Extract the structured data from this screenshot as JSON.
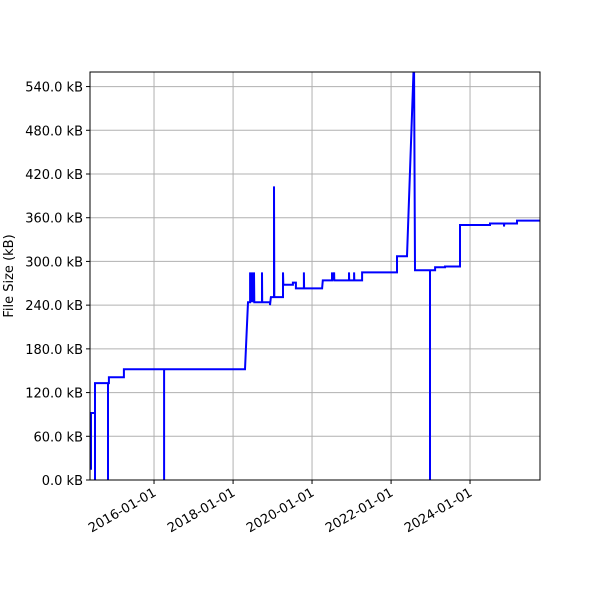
{
  "chart_data": {
    "type": "line",
    "title": "",
    "xlabel": "",
    "ylabel": "File Size (kB)",
    "xlim": [
      "2014-05-19",
      "2025-10-09"
    ],
    "ylim": [
      0,
      560
    ],
    "grid": true,
    "line_color": "#0000ff",
    "x_ticks": [
      "2016-01-01",
      "2018-01-01",
      "2020-01-01",
      "2022-01-01",
      "2024-01-01"
    ],
    "y_ticks": [
      0,
      60,
      120,
      180,
      240,
      300,
      360,
      420,
      480,
      540
    ],
    "y_tick_labels": [
      "0.0 kB",
      "60.0 kB",
      "120.0 kB",
      "180.0 kB",
      "240.0 kB",
      "300.0 kB",
      "360.0 kB",
      "420.0 kB",
      "480.0 kB",
      "540.0 kB"
    ],
    "series": [
      {
        "points": [
          [
            "2014-05-28",
            14
          ],
          [
            "2014-05-28",
            92
          ],
          [
            "2014-07-04",
            92
          ],
          [
            "2014-07-04",
            0
          ],
          [
            "2014-07-04",
            133
          ],
          [
            "2014-11-01",
            133
          ],
          [
            "2014-11-01",
            0
          ],
          [
            "2014-11-01",
            133
          ],
          [
            "2014-11-10",
            133
          ],
          [
            "2014-11-10",
            141
          ],
          [
            "2015-03-28",
            141
          ],
          [
            "2015-03-28",
            152
          ],
          [
            "2016-04-03",
            152
          ],
          [
            "2016-04-03",
            0
          ],
          [
            "2016-04-03",
            152
          ],
          [
            "2018-04-21",
            152
          ],
          [
            "2018-05-19",
            244
          ],
          [
            "2018-06-07",
            244
          ],
          [
            "2018-06-07",
            285
          ],
          [
            "2018-06-10",
            244
          ],
          [
            "2018-06-25",
            285
          ],
          [
            "2018-06-28",
            244
          ],
          [
            "2018-07-13",
            285
          ],
          [
            "2018-07-16",
            244
          ],
          [
            "2018-09-25",
            244
          ],
          [
            "2018-09-25",
            285
          ],
          [
            "2018-09-27",
            244
          ],
          [
            "2018-12-08",
            244
          ],
          [
            "2018-12-08",
            240
          ],
          [
            "2018-12-17",
            251
          ],
          [
            "2019-01-14",
            251
          ],
          [
            "2019-01-14",
            403
          ],
          [
            "2019-01-17",
            251
          ],
          [
            "2019-04-08",
            251
          ],
          [
            "2019-04-08",
            285
          ],
          [
            "2019-04-10",
            268
          ],
          [
            "2019-07-08",
            268
          ],
          [
            "2019-07-08",
            271
          ],
          [
            "2019-08-05",
            271
          ],
          [
            "2019-08-05",
            263
          ],
          [
            "2019-10-18",
            263
          ],
          [
            "2019-10-18",
            285
          ],
          [
            "2019-10-20",
            263
          ],
          [
            "2020-04-03",
            263
          ],
          [
            "2020-04-10",
            274
          ],
          [
            "2020-07-04",
            274
          ],
          [
            "2020-07-04",
            285
          ],
          [
            "2020-07-10",
            274
          ],
          [
            "2020-07-23",
            285
          ],
          [
            "2020-07-25",
            274
          ],
          [
            "2020-12-08",
            274
          ],
          [
            "2020-12-08",
            285
          ],
          [
            "2020-12-10",
            274
          ],
          [
            "2021-01-24",
            274
          ],
          [
            "2021-01-24",
            285
          ],
          [
            "2021-01-26",
            274
          ],
          [
            "2021-04-08",
            274
          ],
          [
            "2021-04-08",
            285
          ],
          [
            "2022-02-25",
            285
          ],
          [
            "2022-02-25",
            307
          ],
          [
            "2022-05-28",
            307
          ],
          [
            "2022-08-01",
            580
          ],
          [
            "2022-08-10",
            288
          ],
          [
            "2022-12-27",
            288
          ],
          [
            "2022-12-27",
            0
          ],
          [
            "2022-12-27",
            288
          ],
          [
            "2023-02-12",
            288
          ],
          [
            "2023-02-12",
            292
          ],
          [
            "2023-05-15",
            292
          ],
          [
            "2023-05-15",
            293
          ],
          [
            "2023-09-30",
            293
          ],
          [
            "2023-09-30",
            350
          ],
          [
            "2024-07-04",
            350
          ],
          [
            "2024-07-04",
            352
          ],
          [
            "2024-11-10",
            352
          ],
          [
            "2024-11-10",
            348
          ],
          [
            "2024-11-13",
            352
          ],
          [
            "2025-03-10",
            352
          ],
          [
            "2025-03-10",
            356
          ],
          [
            "2025-10-09",
            356
          ]
        ]
      }
    ]
  }
}
